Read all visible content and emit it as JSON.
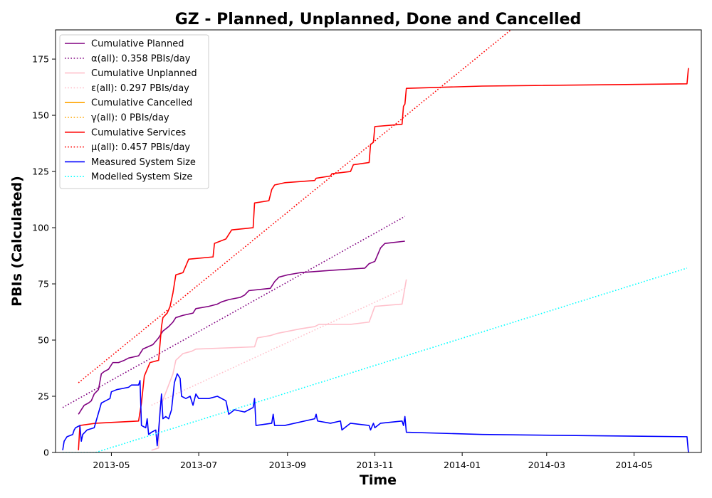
{
  "chart_data": {
    "type": "line",
    "title": "GZ - Planned, Unplanned, Done  and Cancelled",
    "xlabel": "Time",
    "ylabel": "PBIs (Calculated)",
    "x_is_date": true,
    "xlim": [
      "2013-03-23",
      "2014-06-17"
    ],
    "ylim": [
      0,
      188
    ],
    "xticks": [
      {
        "date": "2013-05-01",
        "label": "2013-05"
      },
      {
        "date": "2013-07-01",
        "label": "2013-07"
      },
      {
        "date": "2013-09-01",
        "label": "2013-09"
      },
      {
        "date": "2013-11-01",
        "label": "2013-11"
      },
      {
        "date": "2014-01-01",
        "label": "2014-01"
      },
      {
        "date": "2014-03-01",
        "label": "2014-03"
      },
      {
        "date": "2014-05-01",
        "label": "2014-05"
      }
    ],
    "yticks": [
      0,
      25,
      50,
      75,
      100,
      125,
      150,
      175
    ],
    "legend_position": "top-left",
    "series": [
      {
        "name": "Cumulative Planned",
        "color": "#800080",
        "style": "solid",
        "width": 1.6,
        "points": [
          [
            "2013-04-08",
            17
          ],
          [
            "2013-04-10",
            19
          ],
          [
            "2013-04-12",
            21
          ],
          [
            "2013-04-15",
            22
          ],
          [
            "2013-04-17",
            23
          ],
          [
            "2013-04-19",
            26
          ],
          [
            "2013-04-22",
            28
          ],
          [
            "2013-04-24",
            35
          ],
          [
            "2013-04-26",
            36
          ],
          [
            "2013-04-29",
            37
          ],
          [
            "2013-05-02",
            40
          ],
          [
            "2013-05-06",
            40
          ],
          [
            "2013-05-10",
            41
          ],
          [
            "2013-05-13",
            42
          ],
          [
            "2013-05-20",
            43
          ],
          [
            "2013-05-23",
            46
          ],
          [
            "2013-05-30",
            48
          ],
          [
            "2013-06-03",
            51
          ],
          [
            "2013-06-06",
            54
          ],
          [
            "2013-06-10",
            56
          ],
          [
            "2013-06-13",
            58
          ],
          [
            "2013-06-15",
            60
          ],
          [
            "2013-06-20",
            61
          ],
          [
            "2013-06-27",
            62
          ],
          [
            "2013-06-29",
            64
          ],
          [
            "2013-07-08",
            65
          ],
          [
            "2013-07-14",
            66
          ],
          [
            "2013-07-17",
            67
          ],
          [
            "2013-07-22",
            68
          ],
          [
            "2013-07-30",
            69
          ],
          [
            "2013-08-02",
            70
          ],
          [
            "2013-08-05",
            72
          ],
          [
            "2013-08-20",
            73
          ],
          [
            "2013-08-23",
            76
          ],
          [
            "2013-08-26",
            78
          ],
          [
            "2013-09-01",
            79
          ],
          [
            "2013-09-10",
            80
          ],
          [
            "2013-10-01",
            81
          ],
          [
            "2013-10-25",
            82
          ],
          [
            "2013-10-28",
            84
          ],
          [
            "2013-11-01",
            85
          ],
          [
            "2013-11-03",
            88
          ],
          [
            "2013-11-05",
            91
          ],
          [
            "2013-11-08",
            93
          ],
          [
            "2013-11-22",
            94
          ]
        ]
      },
      {
        "name": "α(all): 0.358 PBIs/day",
        "color": "#800080",
        "style": "dotted",
        "width": 1.6,
        "points": [
          [
            "2013-03-28",
            20
          ],
          [
            "2013-11-22",
            105
          ]
        ]
      },
      {
        "name": "Cumulative Unplanned",
        "color": "#ffc0cb",
        "style": "solid",
        "width": 1.6,
        "points": [
          [
            "2013-05-29",
            1
          ],
          [
            "2013-06-03",
            2
          ],
          [
            "2013-06-04",
            20
          ],
          [
            "2013-06-10",
            30
          ],
          [
            "2013-06-13",
            35
          ],
          [
            "2013-06-15",
            41
          ],
          [
            "2013-06-20",
            44
          ],
          [
            "2013-06-26",
            45
          ],
          [
            "2013-06-29",
            46
          ],
          [
            "2013-08-09",
            47
          ],
          [
            "2013-08-11",
            51
          ],
          [
            "2013-08-20",
            52
          ],
          [
            "2013-08-25",
            53
          ],
          [
            "2013-09-10",
            55
          ],
          [
            "2013-09-20",
            56
          ],
          [
            "2013-09-23",
            57
          ],
          [
            "2013-10-15",
            57
          ],
          [
            "2013-10-28",
            58
          ],
          [
            "2013-11-01",
            65
          ],
          [
            "2013-11-20",
            66
          ],
          [
            "2013-11-23",
            77
          ]
        ]
      },
      {
        "name": "ε(all): 0.297 PBIs/day",
        "color": "#ffc0cb",
        "style": "dotted",
        "width": 1.6,
        "points": [
          [
            "2013-05-29",
            21
          ],
          [
            "2013-11-22",
            73
          ]
        ]
      },
      {
        "name": "Cumulative Cancelled",
        "color": "#ffa500",
        "style": "solid",
        "width": 1.6,
        "points": []
      },
      {
        "name": "γ(all): 0 PBIs/day",
        "color": "#ffa500",
        "style": "dotted",
        "width": 1.6,
        "points": []
      },
      {
        "name": "Cumulative Services",
        "color": "#ff0000",
        "style": "solid",
        "width": 1.6,
        "points": [
          [
            "2013-04-08",
            1
          ],
          [
            "2013-04-09",
            12
          ],
          [
            "2013-04-20",
            13
          ],
          [
            "2013-05-20",
            14
          ],
          [
            "2013-05-22",
            22
          ],
          [
            "2013-05-24",
            34
          ],
          [
            "2013-05-28",
            40
          ],
          [
            "2013-06-03",
            41
          ],
          [
            "2013-06-05",
            56
          ],
          [
            "2013-06-06",
            60
          ],
          [
            "2013-06-09",
            62
          ],
          [
            "2013-06-11",
            65
          ],
          [
            "2013-06-13",
            71
          ],
          [
            "2013-06-15",
            79
          ],
          [
            "2013-06-20",
            80
          ],
          [
            "2013-06-22",
            83
          ],
          [
            "2013-06-24",
            86
          ],
          [
            "2013-07-11",
            87
          ],
          [
            "2013-07-12",
            93
          ],
          [
            "2013-07-20",
            95
          ],
          [
            "2013-07-24",
            99
          ],
          [
            "2013-08-08",
            100
          ],
          [
            "2013-08-09",
            111
          ],
          [
            "2013-08-19",
            112
          ],
          [
            "2013-08-21",
            117
          ],
          [
            "2013-08-23",
            119
          ],
          [
            "2013-08-30",
            120
          ],
          [
            "2013-09-20",
            121
          ],
          [
            "2013-09-21",
            122
          ],
          [
            "2013-10-01",
            123
          ],
          [
            "2013-10-02",
            124
          ],
          [
            "2013-10-15",
            125
          ],
          [
            "2013-10-17",
            128
          ],
          [
            "2013-10-28",
            129
          ],
          [
            "2013-10-29",
            137
          ],
          [
            "2013-10-31",
            138
          ],
          [
            "2013-11-01",
            145
          ],
          [
            "2013-11-20",
            146
          ],
          [
            "2013-11-21",
            154
          ],
          [
            "2013-11-22",
            155
          ],
          [
            "2013-11-23",
            162
          ],
          [
            "2014-01-15",
            163
          ],
          [
            "2014-06-07",
            164
          ],
          [
            "2014-06-08",
            171
          ]
        ]
      },
      {
        "name": "μ(all): 0.457 PBIs/day",
        "color": "#ff0000",
        "style": "dotted",
        "width": 1.6,
        "points": [
          [
            "2013-04-08",
            31
          ],
          [
            "2014-02-04",
            188
          ]
        ]
      },
      {
        "name": "Measured System Size",
        "color": "#0000ff",
        "style": "solid",
        "width": 1.6,
        "points": [
          [
            "2013-03-28",
            1
          ],
          [
            "2013-03-29",
            5
          ],
          [
            "2013-03-31",
            7
          ],
          [
            "2013-04-04",
            8
          ],
          [
            "2013-04-05",
            10
          ],
          [
            "2013-04-06",
            11
          ],
          [
            "2013-04-09",
            12
          ],
          [
            "2013-04-10",
            5
          ],
          [
            "2013-04-11",
            8
          ],
          [
            "2013-04-14",
            10
          ],
          [
            "2013-04-19",
            11
          ],
          [
            "2013-04-24",
            22
          ],
          [
            "2013-04-27",
            23
          ],
          [
            "2013-04-30",
            24
          ],
          [
            "2013-05-01",
            27
          ],
          [
            "2013-05-05",
            28
          ],
          [
            "2013-05-13",
            29
          ],
          [
            "2013-05-15",
            30
          ],
          [
            "2013-05-20",
            30
          ],
          [
            "2013-05-21",
            32
          ],
          [
            "2013-05-22",
            12
          ],
          [
            "2013-05-25",
            11
          ],
          [
            "2013-05-26",
            15
          ],
          [
            "2013-05-27",
            8
          ],
          [
            "2013-05-29",
            9
          ],
          [
            "2013-06-01",
            10
          ],
          [
            "2013-06-02",
            3
          ],
          [
            "2013-06-03",
            10
          ],
          [
            "2013-06-05",
            26
          ],
          [
            "2013-06-06",
            15
          ],
          [
            "2013-06-08",
            16
          ],
          [
            "2013-06-10",
            15
          ],
          [
            "2013-06-12",
            19
          ],
          [
            "2013-06-14",
            31
          ],
          [
            "2013-06-16",
            35
          ],
          [
            "2013-06-18",
            33
          ],
          [
            "2013-06-19",
            25
          ],
          [
            "2013-06-22",
            24
          ],
          [
            "2013-06-25",
            25
          ],
          [
            "2013-06-27",
            21
          ],
          [
            "2013-06-29",
            26
          ],
          [
            "2013-07-01",
            24
          ],
          [
            "2013-07-08",
            24
          ],
          [
            "2013-07-14",
            25
          ],
          [
            "2013-07-20",
            23
          ],
          [
            "2013-07-22",
            17
          ],
          [
            "2013-07-26",
            19
          ],
          [
            "2013-08-02",
            18
          ],
          [
            "2013-08-08",
            20
          ],
          [
            "2013-08-09",
            24
          ],
          [
            "2013-08-10",
            12
          ],
          [
            "2013-08-21",
            13
          ],
          [
            "2013-08-22",
            17
          ],
          [
            "2013-08-23",
            12
          ],
          [
            "2013-08-30",
            12
          ],
          [
            "2013-09-20",
            15
          ],
          [
            "2013-09-21",
            17
          ],
          [
            "2013-09-22",
            14
          ],
          [
            "2013-10-01",
            13
          ],
          [
            "2013-10-08",
            14
          ],
          [
            "2013-10-09",
            10
          ],
          [
            "2013-10-15",
            13
          ],
          [
            "2013-10-28",
            12
          ],
          [
            "2013-10-29",
            10
          ],
          [
            "2013-10-31",
            13
          ],
          [
            "2013-11-01",
            11
          ],
          [
            "2013-11-05",
            13
          ],
          [
            "2013-11-20",
            14
          ],
          [
            "2013-11-21",
            12
          ],
          [
            "2013-11-22",
            16
          ],
          [
            "2013-11-23",
            9
          ],
          [
            "2014-01-15",
            8
          ],
          [
            "2014-06-07",
            7
          ],
          [
            "2014-06-08",
            0
          ]
        ]
      },
      {
        "name": "Modelled System Size",
        "color": "#00ffff",
        "style": "dotted",
        "width": 1.6,
        "points": [
          [
            "2013-03-28",
            0
          ],
          [
            "2013-04-20",
            0
          ],
          [
            "2014-06-07",
            82
          ]
        ]
      }
    ]
  }
}
